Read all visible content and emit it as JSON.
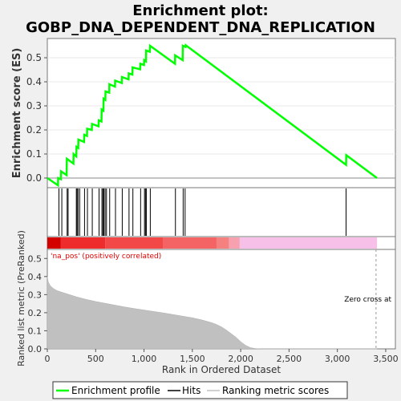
{
  "chart_data": [
    {
      "type": "line",
      "title_line1": "Enrichment plot:",
      "title_line2": "GOBP_DNA_DEPENDENT_DNA_REPLICATION",
      "ylabel": "Enrichment score (ES)",
      "ylim": [
        -0.04,
        0.58
      ],
      "yticks": [
        0.0,
        0.1,
        0.2,
        0.3,
        0.4,
        0.5
      ],
      "ytick_labels": [
        "0.0",
        "0.1",
        "0.2",
        "0.3",
        "0.4",
        "0.5"
      ],
      "xlim": [
        0,
        3600
      ],
      "series": [
        {
          "name": "Enrichment profile",
          "color": "#00ff00",
          "x": [
            0,
            110,
            112,
            140,
            142,
            200,
            202,
            270,
            272,
            300,
            302,
            320,
            322,
            380,
            382,
            410,
            412,
            460,
            462,
            530,
            532,
            560,
            562,
            580,
            582,
            600,
            602,
            640,
            642,
            700,
            702,
            770,
            772,
            840,
            842,
            880,
            882,
            960,
            962,
            1000,
            1002,
            1020,
            1022,
            1060,
            1062,
            1320,
            1322,
            1400,
            1402,
            1430,
            1432,
            3090,
            3092,
            3410
          ],
          "y": [
            0.0,
            -0.03,
            0.0,
            -0.005,
            0.028,
            0.012,
            0.08,
            0.06,
            0.1,
            0.09,
            0.13,
            0.125,
            0.16,
            0.15,
            0.18,
            0.175,
            0.205,
            0.2,
            0.225,
            0.215,
            0.24,
            0.235,
            0.285,
            0.28,
            0.33,
            0.325,
            0.36,
            0.355,
            0.39,
            0.38,
            0.405,
            0.395,
            0.42,
            0.41,
            0.435,
            0.43,
            0.46,
            0.452,
            0.475,
            0.47,
            0.49,
            0.485,
            0.53,
            0.525,
            0.55,
            0.475,
            0.51,
            0.49,
            0.55,
            0.545,
            0.552,
            0.055,
            0.095,
            0.0
          ]
        }
      ]
    },
    {
      "type": "hits",
      "name": "Hits",
      "color": "#000000",
      "x": [
        120,
        150,
        205,
        215,
        300,
        308,
        318,
        335,
        385,
        415,
        465,
        535,
        565,
        575,
        585,
        598,
        612,
        645,
        705,
        775,
        845,
        885,
        965,
        1005,
        1015,
        1025,
        1065,
        1325,
        1405,
        1425,
        3090
      ]
    },
    {
      "type": "heatmap",
      "bands": [
        {
          "x0": 0,
          "x1": 140,
          "color": "#d40000"
        },
        {
          "x0": 140,
          "x1": 600,
          "color": "#ef2c2c"
        },
        {
          "x0": 600,
          "x1": 1200,
          "color": "#f24848"
        },
        {
          "x0": 1200,
          "x1": 1750,
          "color": "#f46464"
        },
        {
          "x0": 1750,
          "x1": 1880,
          "color": "#f58080"
        },
        {
          "x0": 1880,
          "x1": 1990,
          "color": "#f7a0b0"
        },
        {
          "x0": 1990,
          "x1": 3410,
          "color": "#f7c0e8"
        }
      ]
    },
    {
      "type": "area",
      "ylabel": "Ranked list metric (PreRanked)",
      "xlabel": "Rank in Ordered Dataset",
      "ylim": [
        0,
        0.55
      ],
      "yticks": [
        0.0,
        0.1,
        0.2,
        0.3,
        0.4,
        0.5
      ],
      "ytick_labels": [
        "0.0",
        "0.1",
        "0.2",
        "0.3",
        "0.4",
        "0.5"
      ],
      "xticks": [
        0,
        500,
        1000,
        1500,
        2000,
        2500,
        3000,
        3500
      ],
      "xtick_labels": [
        "0",
        "500",
        "1,000",
        "1,500",
        "2,000",
        "2,500",
        "3,000",
        "3,500"
      ],
      "color": "#c0c0c0",
      "x": [
        0,
        10,
        30,
        60,
        100,
        200,
        300,
        400,
        500,
        600,
        700,
        800,
        900,
        1000,
        1100,
        1200,
        1300,
        1400,
        1500,
        1600,
        1700,
        1750,
        1800,
        1850,
        1900,
        1950,
        2000,
        2050,
        2100,
        2150,
        2200,
        2300,
        2500,
        3000,
        3410
      ],
      "y": [
        0.4,
        0.37,
        0.35,
        0.335,
        0.322,
        0.305,
        0.288,
        0.274,
        0.262,
        0.252,
        0.242,
        0.232,
        0.223,
        0.215,
        0.207,
        0.199,
        0.19,
        0.181,
        0.172,
        0.16,
        0.145,
        0.135,
        0.122,
        0.105,
        0.085,
        0.065,
        0.04,
        0.02,
        0.007,
        0.002,
        0.0,
        0.0,
        0.0,
        0.0,
        0.0
      ],
      "annotation_pos": "'na_pos' (positively correlated)",
      "annotation_zero": "Zero cross at",
      "zero_cross_x": 3400
    }
  ],
  "legend": {
    "items": [
      {
        "label": "Enrichment profile",
        "color": "#00ff00"
      },
      {
        "label": "Hits",
        "color": "#000000"
      },
      {
        "label": "Ranking metric scores",
        "color": "#c0c0c0"
      }
    ]
  },
  "colors": {
    "pos_annotation": "#e00000"
  }
}
